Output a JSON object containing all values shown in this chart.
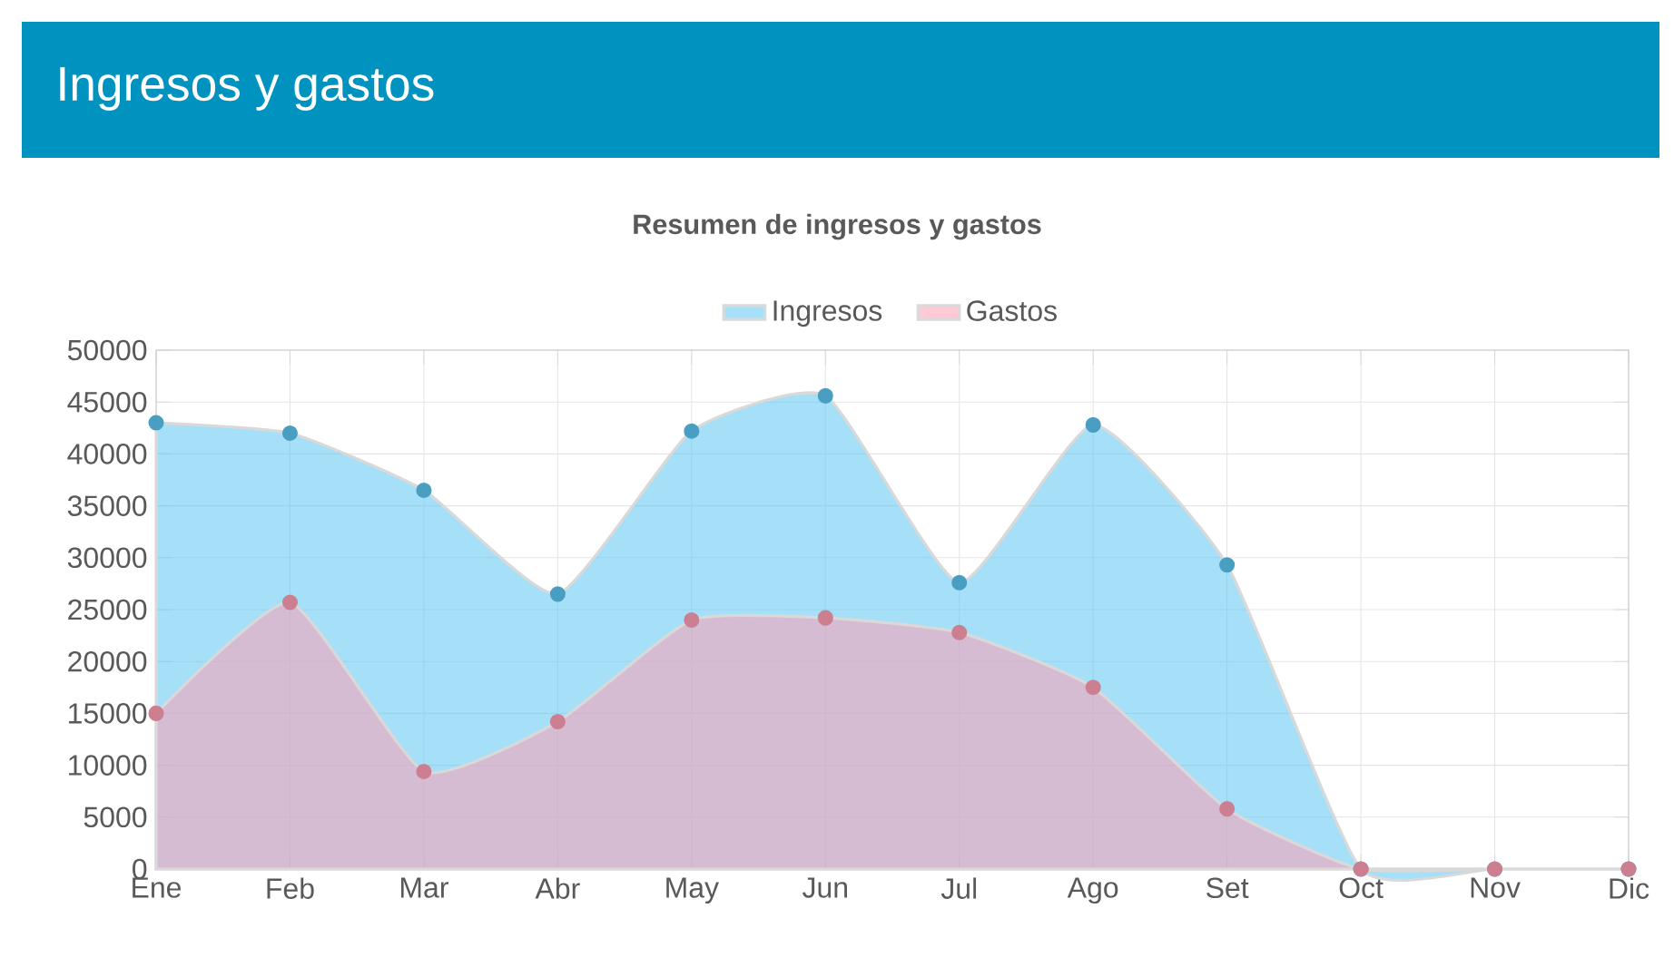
{
  "chart_data": {
    "type": "area",
    "title": "Ingresos y gastos",
    "subtitle": "Resumen de ingresos y gastos",
    "categories": [
      "Ene",
      "Feb",
      "Mar",
      "Abr",
      "May",
      "Jun",
      "Jul",
      "Ago",
      "Set",
      "Oct",
      "Nov",
      "Dic"
    ],
    "series": [
      {
        "name": "Ingresos",
        "color": "#5bc5f2",
        "values": [
          43000,
          42000,
          36500,
          26500,
          42200,
          45600,
          27600,
          42800,
          29300,
          0,
          0,
          0
        ]
      },
      {
        "name": "Gastos",
        "color": "#ff9fb5",
        "values": [
          15000,
          25700,
          9400,
          14200,
          24000,
          24200,
          22800,
          17500,
          5800,
          0,
          0,
          0
        ]
      }
    ],
    "ylim": [
      0,
      50000
    ],
    "yticks": [
      0,
      5000,
      10000,
      15000,
      20000,
      25000,
      30000,
      35000,
      40000,
      45000,
      50000
    ],
    "grid": true,
    "legend": "top",
    "marker": "circle"
  }
}
